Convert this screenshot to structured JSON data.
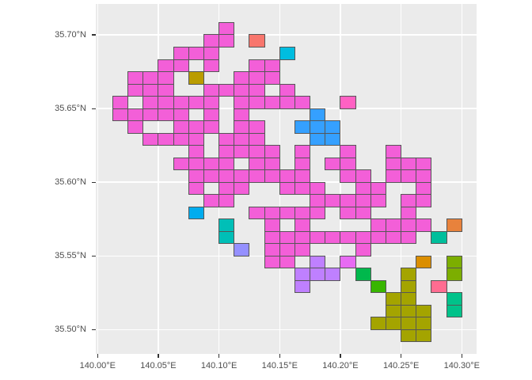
{
  "chart_data": {
    "type": "heatmap",
    "title": "",
    "xlabel": "",
    "ylabel": "",
    "grid_on": true,
    "legend_position": "none",
    "x_axis": {
      "tick_labels": [
        "140.00°E",
        "140.05°E",
        "140.10°E",
        "140.15°E",
        "140.20°E",
        "140.25°E",
        "140.30°E"
      ],
      "tick_values": [
        140.0,
        140.05,
        140.1,
        140.15,
        140.2,
        140.25,
        140.3
      ],
      "range": [
        139.999,
        140.312
      ]
    },
    "y_axis": {
      "tick_labels": [
        "35.70°N",
        "35.65°N",
        "35.60°N",
        "35.55°N",
        "35.50°N"
      ],
      "tick_values": [
        35.7,
        35.65,
        35.6,
        35.55,
        35.5
      ],
      "range": [
        35.479,
        35.721
      ]
    },
    "mesh": {
      "cell_lon_deg": 0.0125,
      "cell_lat_deg": 0.0083333,
      "origin_lon": 140.0,
      "origin_lat_top": 35.7166667,
      "note_col": "col index c: lon = 140.0 + c*0.0125",
      "note_row": "row index r: top lat = 35.7166667 - r*0.0083333"
    },
    "series": [
      {
        "name": "magenta",
        "color": "#F35FD8",
        "cells": [
          [
            8,
            1
          ],
          [
            7,
            2
          ],
          [
            8,
            2
          ],
          [
            5,
            3
          ],
          [
            6,
            3
          ],
          [
            7,
            3
          ],
          [
            4,
            4
          ],
          [
            5,
            4
          ],
          [
            7,
            4
          ],
          [
            10,
            4
          ],
          [
            11,
            4
          ],
          [
            2,
            5
          ],
          [
            3,
            5
          ],
          [
            4,
            5
          ],
          [
            9,
            5
          ],
          [
            10,
            5
          ],
          [
            11,
            5
          ],
          [
            2,
            6
          ],
          [
            3,
            6
          ],
          [
            4,
            6
          ],
          [
            7,
            6
          ],
          [
            8,
            6
          ],
          [
            9,
            6
          ],
          [
            10,
            6
          ],
          [
            12,
            6
          ],
          [
            1,
            7
          ],
          [
            3,
            7
          ],
          [
            4,
            7
          ],
          [
            5,
            7
          ],
          [
            6,
            7
          ],
          [
            7,
            7
          ],
          [
            9,
            7
          ],
          [
            10,
            7
          ],
          [
            11,
            7
          ],
          [
            12,
            7
          ],
          [
            13,
            7
          ],
          [
            1,
            8
          ],
          [
            2,
            8
          ],
          [
            3,
            8
          ],
          [
            4,
            8
          ],
          [
            5,
            8
          ],
          [
            7,
            8
          ],
          [
            9,
            8
          ],
          [
            2,
            9
          ],
          [
            5,
            9
          ],
          [
            6,
            9
          ],
          [
            7,
            9
          ],
          [
            9,
            9
          ],
          [
            10,
            9
          ],
          [
            3,
            10
          ],
          [
            4,
            10
          ],
          [
            5,
            10
          ],
          [
            6,
            10
          ],
          [
            8,
            10
          ],
          [
            9,
            10
          ],
          [
            10,
            10
          ],
          [
            6,
            11
          ],
          [
            8,
            11
          ],
          [
            9,
            11
          ],
          [
            10,
            11
          ],
          [
            11,
            11
          ],
          [
            13,
            11
          ],
          [
            16,
            11
          ],
          [
            19,
            11
          ],
          [
            5,
            12
          ],
          [
            6,
            12
          ],
          [
            7,
            12
          ],
          [
            8,
            12
          ],
          [
            10,
            12
          ],
          [
            11,
            12
          ],
          [
            13,
            12
          ],
          [
            15,
            12
          ],
          [
            16,
            12
          ],
          [
            19,
            12
          ],
          [
            20,
            12
          ],
          [
            21,
            12
          ],
          [
            6,
            13
          ],
          [
            7,
            13
          ],
          [
            8,
            13
          ],
          [
            9,
            13
          ],
          [
            10,
            13
          ],
          [
            11,
            13
          ],
          [
            12,
            13
          ],
          [
            13,
            13
          ],
          [
            16,
            13
          ],
          [
            17,
            13
          ],
          [
            19,
            13
          ],
          [
            20,
            13
          ],
          [
            21,
            13
          ],
          [
            6,
            14
          ],
          [
            8,
            14
          ],
          [
            9,
            14
          ],
          [
            12,
            14
          ],
          [
            13,
            14
          ],
          [
            14,
            14
          ],
          [
            17,
            14
          ],
          [
            18,
            14
          ],
          [
            21,
            14
          ],
          [
            7,
            15
          ],
          [
            8,
            15
          ],
          [
            14,
            15
          ],
          [
            15,
            15
          ],
          [
            16,
            15
          ],
          [
            17,
            15
          ],
          [
            18,
            15
          ],
          [
            20,
            15
          ],
          [
            21,
            15
          ],
          [
            10,
            16
          ],
          [
            11,
            16
          ],
          [
            12,
            16
          ],
          [
            13,
            16
          ],
          [
            14,
            16
          ],
          [
            16,
            16
          ],
          [
            17,
            16
          ],
          [
            20,
            16
          ],
          [
            11,
            17
          ],
          [
            13,
            17
          ],
          [
            18,
            17
          ],
          [
            19,
            17
          ],
          [
            20,
            17
          ],
          [
            21,
            17
          ],
          [
            11,
            18
          ],
          [
            12,
            18
          ],
          [
            13,
            18
          ],
          [
            14,
            18
          ],
          [
            15,
            18
          ],
          [
            16,
            18
          ],
          [
            17,
            18
          ],
          [
            18,
            18
          ],
          [
            19,
            18
          ],
          [
            20,
            18
          ],
          [
            11,
            19
          ],
          [
            12,
            19
          ],
          [
            13,
            19
          ],
          [
            17,
            19
          ],
          [
            11,
            20
          ],
          [
            12,
            20
          ]
        ]
      },
      {
        "name": "salmon",
        "color": "#F8766D",
        "cells": [
          [
            10,
            2
          ]
        ]
      },
      {
        "name": "cyan",
        "color": "#00BDE0",
        "cells": [
          [
            12,
            3
          ]
        ]
      },
      {
        "name": "dark-yellow",
        "color": "#BA9C00",
        "cells": [
          [
            6,
            5
          ]
        ]
      },
      {
        "name": "hot-pink",
        "color": "#FF61C3",
        "cells": [
          [
            16,
            7
          ]
        ]
      },
      {
        "name": "blue",
        "color": "#35A0FF",
        "cells": [
          [
            14,
            8
          ],
          [
            13,
            9
          ],
          [
            14,
            9
          ],
          [
            15,
            9
          ],
          [
            14,
            10
          ],
          [
            15,
            10
          ]
        ]
      },
      {
        "name": "azure",
        "color": "#00ACEE",
        "cells": [
          [
            6,
            16
          ]
        ]
      },
      {
        "name": "teal",
        "color": "#00BFB7",
        "cells": [
          [
            8,
            17
          ],
          [
            8,
            18
          ]
        ]
      },
      {
        "name": "periwinkle",
        "color": "#9590FF",
        "cells": [
          [
            9,
            19
          ]
        ]
      },
      {
        "name": "violet",
        "color": "#BF80FF",
        "cells": [
          [
            14,
            20
          ],
          [
            13,
            21
          ],
          [
            14,
            21
          ],
          [
            15,
            21
          ],
          [
            13,
            22
          ]
        ]
      },
      {
        "name": "orchid",
        "color": "#E76BF3",
        "cells": [
          [
            16,
            20
          ]
        ]
      },
      {
        "name": "emerald-green",
        "color": "#00B84C",
        "cells": [
          [
            17,
            21
          ]
        ]
      },
      {
        "name": "grass-green",
        "color": "#39B600",
        "cells": [
          [
            18,
            22
          ]
        ]
      },
      {
        "name": "olive",
        "color": "#A4A400",
        "cells": [
          [
            20,
            21
          ],
          [
            20,
            22
          ],
          [
            19,
            23
          ],
          [
            20,
            23
          ],
          [
            19,
            24
          ],
          [
            20,
            24
          ],
          [
            21,
            24
          ],
          [
            18,
            25
          ],
          [
            19,
            25
          ],
          [
            20,
            25
          ],
          [
            21,
            25
          ],
          [
            20,
            26
          ],
          [
            21,
            26
          ]
        ]
      },
      {
        "name": "orange",
        "color": "#E8823C",
        "cells": [
          [
            23,
            17
          ]
        ]
      },
      {
        "name": "dark-orange",
        "color": "#DB8E00",
        "cells": [
          [
            21,
            20
          ]
        ]
      },
      {
        "name": "jade",
        "color": "#00BF9C",
        "cells": [
          [
            22,
            18
          ]
        ]
      },
      {
        "name": "rose-pink",
        "color": "#FF6C91",
        "cells": [
          [
            22,
            22
          ]
        ]
      },
      {
        "name": "spring-green",
        "color": "#00C28A",
        "cells": [
          [
            23,
            23
          ],
          [
            23,
            24
          ]
        ]
      },
      {
        "name": "yellow-green",
        "color": "#7CAE00",
        "cells": [
          [
            23,
            20
          ],
          [
            23,
            21
          ]
        ]
      }
    ],
    "style_colors": {
      "panel_background": "#EBEBEB",
      "major_gridline": "#FFFFFF",
      "tile_border": "#565656",
      "axis_text": "#4D4D4D",
      "tick_mark": "#333333"
    }
  }
}
